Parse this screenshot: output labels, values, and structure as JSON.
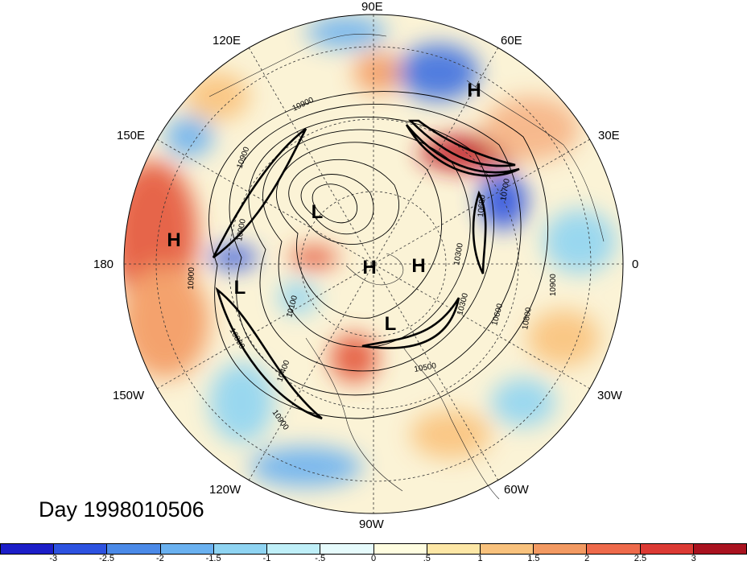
{
  "title": "Day 1998010506",
  "longitude_labels": [
    "90E",
    "60E",
    "120E",
    "30E",
    "150E",
    "0",
    "180",
    "30W",
    "150W",
    "60W",
    "120W",
    "90W"
  ],
  "pressure_systems": [
    "H",
    "H",
    "L",
    "H",
    "H",
    "L",
    "L"
  ],
  "height_contour_labels": [
    "10900",
    "10900",
    "10700",
    "10600",
    "10300",
    "10600",
    "10800",
    "10900",
    "10500",
    "10400",
    "10300",
    "10100",
    "10900",
    "10900",
    "10800",
    "10900"
  ],
  "colorbar": {
    "colors": [
      "#1c1ec8",
      "#2d52e0",
      "#4b8ae8",
      "#6ab1f0",
      "#8fd4f2",
      "#bfeff8",
      "#e6fbfc",
      "#fffde0",
      "#fde7a6",
      "#f9c27d",
      "#f39a62",
      "#ee6a4b",
      "#dc3a34",
      "#a9121f"
    ],
    "labels": [
      "-3",
      "-2.5",
      "-2",
      "-1.5",
      "-1",
      "-.5",
      "0",
      ".5",
      "1",
      "1.5",
      "2",
      "2.5",
      "3"
    ]
  }
}
